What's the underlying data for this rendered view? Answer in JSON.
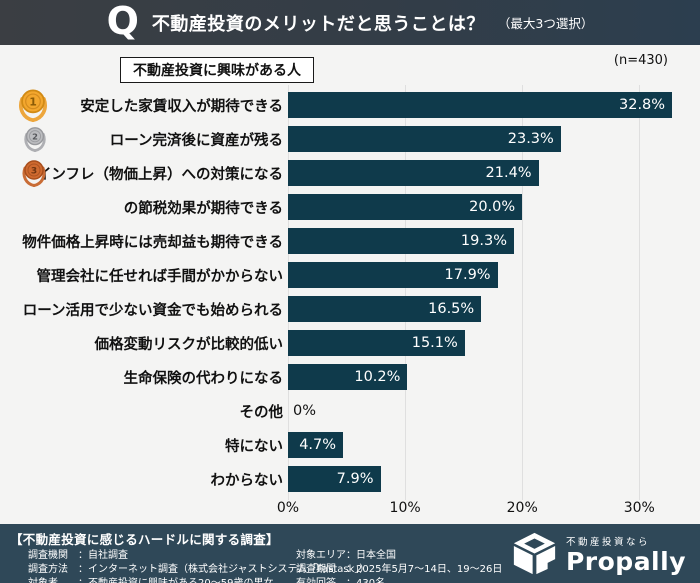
{
  "header": {
    "q_mark": "Q",
    "title": "不動産投資のメリットだと思うことは？",
    "subtitle": "（最大3つ選択）"
  },
  "legend": {
    "label": "不動産投資に興味がある人"
  },
  "sample_label": "(n=430)",
  "chart_data": {
    "type": "bar",
    "orientation": "horizontal",
    "title": "不動産投資のメリットだと思うことは？（最大3つ選択）",
    "n": 430,
    "categories": [
      "安定した家賃収入が期待できる",
      "ローン完済後に資産が残る",
      "インフレ（物価上昇）への対策になる",
      "の節税効果が期待できる",
      "物件価格上昇時には売却益も期待できる",
      "管理会社に任せれば手間がかからない",
      "ローン活用で少ない資金でも始められる",
      "価格変動リスクが比較的低い",
      "生命保険の代わりになる",
      "その他",
      "特にない",
      "わからない"
    ],
    "values": [
      32.8,
      23.3,
      21.4,
      20.0,
      19.3,
      17.9,
      16.5,
      15.1,
      10.2,
      0,
      4.7,
      7.9
    ],
    "value_labels": [
      "32.8%",
      "23.3%",
      "21.4%",
      "20.0%",
      "19.3%",
      "17.9%",
      "16.5%",
      "15.1%",
      "10.2%",
      "0%",
      "4.7%",
      "7.9%"
    ],
    "medals": [
      {
        "rank": "1",
        "style": "gold"
      },
      {
        "rank": "2",
        "style": "silver"
      },
      {
        "rank": "3",
        "style": "bronze"
      }
    ],
    "xlabel": "",
    "ylabel": "",
    "xlim": [
      0,
      35
    ],
    "x_ticks": [
      {
        "value": 0,
        "label": "0%"
      },
      {
        "value": 10,
        "label": "10%"
      },
      {
        "value": 20,
        "label": "20%"
      },
      {
        "value": 30,
        "label": "30%"
      }
    ],
    "grid": true,
    "legend_position": "top-left",
    "bar_color": "#0f3a4b"
  },
  "footer": {
    "title": "【不動産投資に感じるハードルに関する調査】",
    "left_rows": [
      "調査機関　：自社調査",
      "調査方法　：インターネット調査（株式会社ジャストシステム「Fastask」）",
      "対象者　　：不動産投資に興味がある20～59歳の男女"
    ],
    "right_rows": [
      "対象エリア：日本全国",
      "調査期間　：2025年5月7～14日、19～26日",
      "有効回答　：430名"
    ],
    "logo": {
      "tagline": "不動産投資なら",
      "brand": "Propally"
    }
  },
  "colors": {
    "bar": "#0f3a4b",
    "header_from": "#3b3e43",
    "header_to": "#2c3e4f",
    "footer_bg": "#2f4858",
    "page_bg": "#f4f4f3",
    "grid": "#dfdfdf"
  }
}
